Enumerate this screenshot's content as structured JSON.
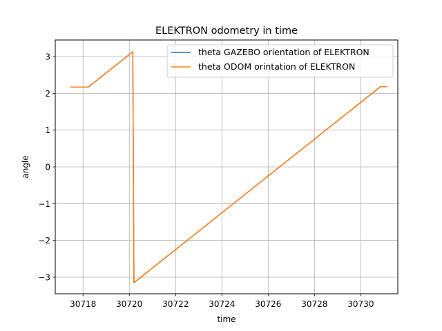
{
  "chart_data": {
    "type": "line",
    "title": "ELEKTRON odometry in time",
    "xlabel": "time",
    "ylabel": "angle",
    "xlim": [
      30716.8,
      30731.6
    ],
    "ylim": [
      -3.45,
      3.45
    ],
    "xticks": [
      30718,
      30720,
      30722,
      30724,
      30726,
      30728,
      30730
    ],
    "xtick_labels": [
      "30718",
      "30720",
      "30722",
      "30724",
      "30726",
      "30728",
      "30730"
    ],
    "yticks": [
      -3,
      -2,
      -1,
      0,
      1,
      2,
      3
    ],
    "ytick_labels": [
      "−3",
      "−2",
      "−1",
      "0",
      "1",
      "2",
      "3"
    ],
    "grid": true,
    "legend_position": "top-right",
    "series": [
      {
        "name": "theta GAZEBO orientation of ELEKTRON",
        "color": "#1f77b4",
        "x": [
          30717.45,
          30718.2,
          30718.25,
          30720.15,
          30720.15,
          30720.2,
          30720.2,
          30730.85,
          30731.15
        ],
        "y": [
          2.17,
          2.17,
          2.18,
          3.13,
          3.13,
          -3.15,
          -3.15,
          2.18,
          2.18
        ]
      },
      {
        "name": "theta ODOM orintation of ELEKTRON",
        "color": "#ff7f0e",
        "x": [
          30717.45,
          30718.2,
          30718.25,
          30720.15,
          30720.15,
          30720.2,
          30720.2,
          30730.85,
          30731.15
        ],
        "y": [
          2.17,
          2.17,
          2.18,
          3.13,
          3.13,
          -3.15,
          -3.15,
          2.18,
          2.18
        ]
      }
    ]
  }
}
